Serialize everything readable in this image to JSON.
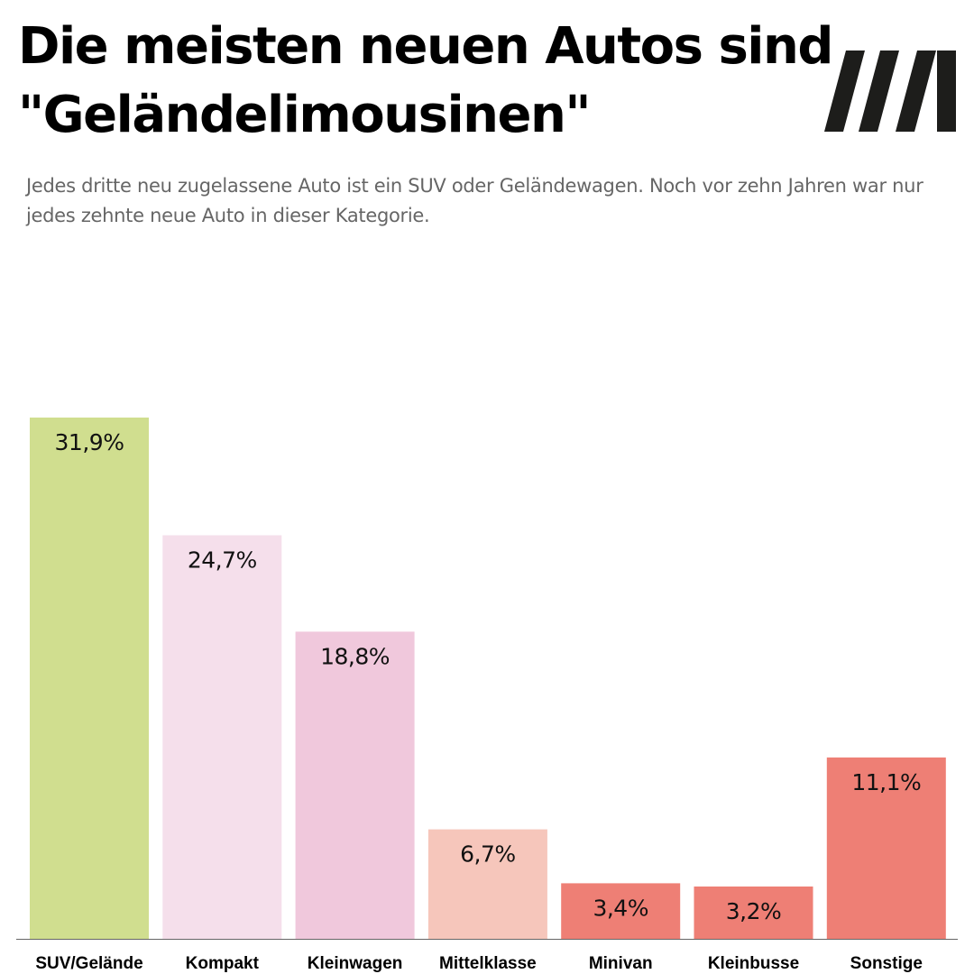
{
  "header": {
    "title_line1": "Die meisten neuen Autos sind",
    "title_line2": "\"Geländelimousinen\"",
    "subtitle": "Jedes dritte neu zugelassene Auto ist ein SUV oder Geländewagen. Noch vor zehn Jahren war nur jedes zehnte neue Auto in dieser Kategorie.",
    "logo_icon": "slash-m-logo-icon"
  },
  "colors": {
    "logo": "#1d1d1b",
    "axis": "#666666"
  },
  "chart_data": {
    "type": "bar",
    "title": "Die meisten neuen Autos sind \"Geländelimousinen\"",
    "xlabel": "",
    "ylabel": "",
    "ylim": [
      0,
      33
    ],
    "grid": false,
    "categories": [
      "SUV/Gelände",
      "Kompakt",
      "Kleinwagen",
      "Mittelklasse",
      "Minivan",
      "Kleinbusse",
      "Sonstige"
    ],
    "values": [
      31.9,
      24.7,
      18.8,
      6.7,
      3.4,
      3.2,
      11.1
    ],
    "value_labels": [
      "31,9%",
      "24,7%",
      "18,8%",
      "6,7%",
      "3,4%",
      "3,2%",
      "11,1%"
    ],
    "bar_colors": [
      "#d0de8f",
      "#f5dfeb",
      "#f0c8dc",
      "#f6c6bb",
      "#ee7f75",
      "#ee7f75",
      "#ee7f75"
    ]
  }
}
